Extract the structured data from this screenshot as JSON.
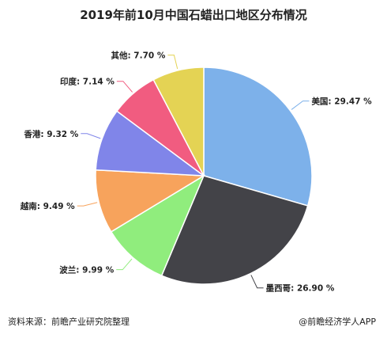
{
  "chart_data": {
    "type": "pie",
    "title": "2019年前10月中国石蜡出口地区分布情况",
    "unit": "%",
    "slices": [
      {
        "label": "美国",
        "value": 29.47,
        "text": "美国: 29.47 %",
        "color": "#7db1ea"
      },
      {
        "label": "墨西哥",
        "value": 26.9,
        "text": "墨西哥: 26.90 %",
        "color": "#434348"
      },
      {
        "label": "波兰",
        "value": 9.99,
        "text": "波兰: 9.99 %",
        "color": "#90ed7d"
      },
      {
        "label": "越南",
        "value": 9.49,
        "text": "越南: 9.49 %",
        "color": "#f7a35c"
      },
      {
        "label": "香港",
        "value": 9.32,
        "text": "香港: 9.32 %",
        "color": "#8085e9"
      },
      {
        "label": "印度",
        "value": 7.14,
        "text": "印度: 7.14 %",
        "color": "#f15c80"
      },
      {
        "label": "其他",
        "value": 7.7,
        "text": "其他: 7.70 %",
        "color": "#e4d354"
      }
    ]
  },
  "footer": {
    "source": "资料来源：前瞻产业研究院整理",
    "brand": "@前瞻经济学人APP"
  }
}
